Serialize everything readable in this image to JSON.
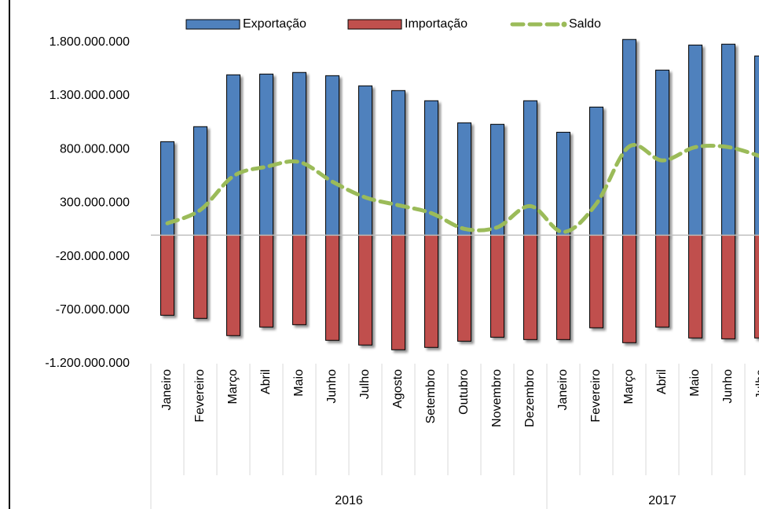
{
  "chart_data": {
    "type": "bar",
    "groups": [
      {
        "name": "2016",
        "categories": [
          "Janeiro",
          "Fevereiro",
          "Março",
          "Abril",
          "Maio",
          "Junho",
          "Julho",
          "Agosto",
          "Setembro",
          "Outubro",
          "Novembro",
          "Dezembro"
        ]
      },
      {
        "name": "2017",
        "categories": [
          "Janeiro",
          "Fevereiro",
          "Março",
          "Abril",
          "Maio",
          "Junho",
          "Julho"
        ]
      }
    ],
    "series": [
      {
        "name": "Exportação",
        "type": "bar",
        "color": "#4f81bd",
        "values": [
          872000000,
          1012000000,
          1496000000,
          1503000000,
          1518000000,
          1488000000,
          1393000000,
          1349000000,
          1254000000,
          1048000000,
          1034000000,
          1254000000,
          960000000,
          1195000000,
          1826000000,
          1540000000,
          1774000000,
          1782000000,
          1672000000
        ]
      },
      {
        "name": "Importação",
        "type": "bar",
        "color": "#c0504d",
        "values": [
          -748000000,
          -777000000,
          -938000000,
          -858000000,
          -836000000,
          -982000000,
          -1026000000,
          -1070000000,
          -1048000000,
          -990000000,
          -953000000,
          -975000000,
          -975000000,
          -865000000,
          -1004000000,
          -858000000,
          -960000000,
          -968000000,
          -960000000
        ]
      },
      {
        "name": "Saldo",
        "type": "line",
        "color": "#9bbb59",
        "values": [
          110000000,
          235000000,
          550000000,
          638000000,
          682000000,
          499000000,
          352000000,
          279000000,
          205000000,
          59000000,
          73000000,
          271000000,
          29000000,
          293000000,
          828000000,
          697000000,
          821000000,
          821000000,
          733000000
        ]
      }
    ],
    "ylim": [
      -1200000000,
      2000000000
    ],
    "yticks": [
      {
        "value": -1200000000,
        "label": "-1.200.000.000"
      },
      {
        "value": -700000000,
        "label": "-700.000.000"
      },
      {
        "value": -200000000,
        "label": "-200.000.000"
      },
      {
        "value": 300000000,
        "label": "300.000.000"
      },
      {
        "value": 800000000,
        "label": "800.000.000"
      },
      {
        "value": 1300000000,
        "label": "1.300.000.000"
      },
      {
        "value": 1800000000,
        "label": "1.800.000.000"
      }
    ],
    "legend": "top"
  }
}
